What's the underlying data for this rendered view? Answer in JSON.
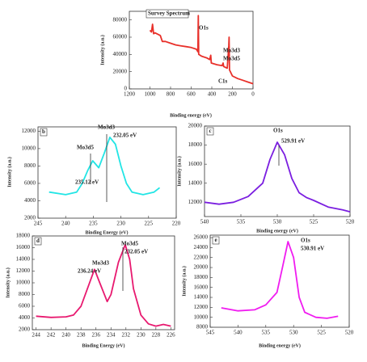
{
  "chart_data": [
    {
      "type": "line",
      "title": "Survey Spectrum",
      "xlabel": "Binding energy (eV)",
      "ylabel": "Intensity (a.u.)",
      "annotations": [
        "O1s",
        "Mo3d3",
        "Mo3d5",
        "C1s"
      ],
      "color": "#e8302a",
      "x": [
        1000,
        985,
        975,
        965,
        950,
        900,
        880,
        850,
        800,
        750,
        700,
        650,
        600,
        550,
        535,
        531,
        527,
        500,
        450,
        420,
        410,
        405,
        350,
        300,
        290,
        285,
        250,
        235,
        232,
        228,
        200,
        150,
        100,
        50,
        0
      ],
      "values": [
        68000,
        66000,
        75000,
        64000,
        65000,
        62000,
        55000,
        55000,
        53000,
        51000,
        50000,
        49000,
        48000,
        46000,
        43000,
        85000,
        40000,
        38000,
        36000,
        34000,
        39000,
        30000,
        28000,
        27000,
        30000,
        26000,
        24000,
        50000,
        60000,
        22000,
        15000,
        12000,
        10000,
        8000,
        6000
      ],
      "xlim": [
        1200,
        0
      ],
      "xticks": [
        1200,
        1000,
        800,
        600,
        400,
        200,
        0
      ],
      "ylim": [
        0,
        90000
      ],
      "yticks": [
        0,
        20000,
        40000,
        60000,
        80000
      ]
    },
    {
      "type": "line",
      "label": "b",
      "xlabel": "Binding Energy (eV)",
      "ylabel": "Intensity (a.u.)",
      "annotations": [
        "Mo3d5",
        "235.12 eV",
        "Mo3d3",
        "232.05 eV"
      ],
      "color": "#22e5e5",
      "x": [
        243,
        240,
        238,
        237,
        236,
        235.1,
        234,
        233,
        232,
        231,
        230,
        229,
        228,
        226,
        224,
        223
      ],
      "values": [
        5000,
        4700,
        5000,
        6000,
        7500,
        8600,
        7800,
        9500,
        11300,
        10500,
        8000,
        6000,
        5000,
        4700,
        5000,
        5500
      ],
      "xlim": [
        245,
        220
      ],
      "xticks": [
        245,
        240,
        235,
        230,
        225,
        220
      ],
      "ylim": [
        2000,
        12500
      ],
      "yticks": [
        2000,
        4000,
        6000,
        8000,
        10000,
        12000
      ]
    },
    {
      "type": "line",
      "label": "c",
      "xlabel": "Binding energy (eV)",
      "ylabel": "Intensity (a.u.)",
      "annotations": [
        "O1s",
        "529.91 eV"
      ],
      "color": "#7b1fe0",
      "x": [
        540,
        538,
        536,
        534,
        532,
        531,
        530,
        529,
        528,
        527,
        526,
        525,
        523,
        521,
        520
      ],
      "values": [
        12000,
        11800,
        12000,
        12600,
        14000,
        16500,
        18300,
        17000,
        14500,
        13000,
        12500,
        12200,
        11500,
        11200,
        11000
      ],
      "xlim": [
        540,
        520
      ],
      "xticks": [
        540,
        535,
        530,
        525,
        520
      ],
      "ylim": [
        10500,
        20000
      ],
      "yticks": [
        12000,
        14000,
        16000,
        18000,
        20000
      ]
    },
    {
      "type": "line",
      "label": "d",
      "xlabel": "Binding Energy (eV)",
      "ylabel": "Intensity (a.u.)",
      "annotations": [
        "Mo3d3",
        "236.24 eV",
        "Mo3d5",
        "232.05 eV"
      ],
      "color": "#e8196f",
      "x": [
        244,
        242,
        240,
        239,
        238,
        237,
        236.2,
        235.5,
        234.5,
        234,
        233,
        232.1,
        231.5,
        231,
        230,
        229,
        228,
        227,
        226
      ],
      "values": [
        4300,
        4100,
        4200,
        4500,
        6000,
        9500,
        12300,
        10000,
        6800,
        8000,
        13500,
        16500,
        14000,
        9000,
        4500,
        3000,
        2600,
        2900,
        2600
      ],
      "xlim": [
        244.5,
        225.5
      ],
      "xticks": [
        244,
        242,
        240,
        238,
        236,
        234,
        232,
        230,
        228,
        226
      ],
      "ylim": [
        2000,
        18000
      ],
      "yticks": [
        2000,
        4000,
        6000,
        8000,
        10000,
        12000,
        14000,
        16000,
        18000
      ]
    },
    {
      "type": "line",
      "label": "e",
      "xlabel": "Binding energy (eV)",
      "ylabel": "Intensity (a.u.)",
      "annotations": [
        "O1s",
        "530.91 eV"
      ],
      "color": "#f01cf0",
      "x": [
        543,
        540,
        537,
        535,
        533,
        532,
        531,
        530,
        529,
        528,
        526,
        524,
        522
      ],
      "values": [
        11900,
        11300,
        11500,
        12500,
        15000,
        20000,
        25200,
        22000,
        14000,
        11000,
        10000,
        9800,
        10200
      ],
      "xlim": [
        545,
        520
      ],
      "xticks": [
        545,
        540,
        535,
        530,
        525,
        520
      ],
      "ylim": [
        8000,
        26500
      ],
      "yticks": [
        8000,
        10000,
        12000,
        14000,
        16000,
        18000,
        20000,
        22000,
        24000,
        26000
      ]
    }
  ]
}
